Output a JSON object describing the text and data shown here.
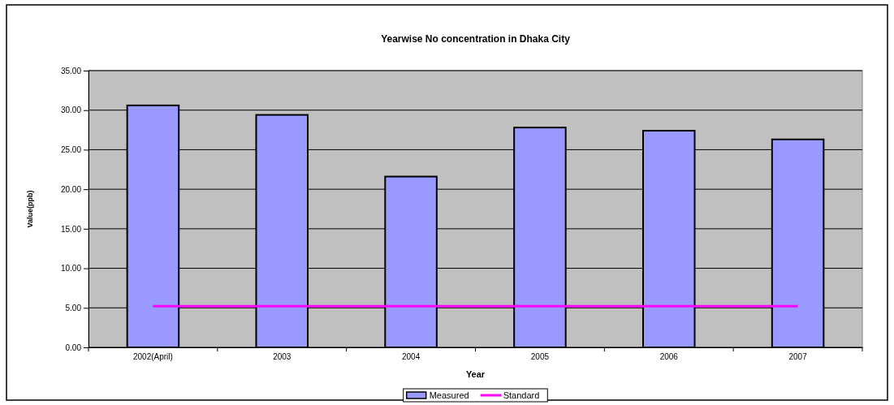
{
  "chart_data": {
    "type": "bar",
    "title": "Yearwise No concentration in Dhaka City",
    "xlabel": "Year",
    "ylabel": "Value(ppb)",
    "categories": [
      "2002(April)",
      "2003",
      "2004",
      "2005",
      "2006",
      "2007"
    ],
    "series": [
      {
        "name": "Measured",
        "color": "#9999ff",
        "values": [
          30.6,
          29.4,
          21.6,
          27.8,
          27.4,
          26.3
        ]
      },
      {
        "name": "Standard",
        "type": "line",
        "color": "#ff00ff",
        "values": [
          5.2,
          5.2,
          5.2,
          5.2,
          5.2,
          5.2
        ]
      }
    ],
    "ylim": [
      0,
      35
    ],
    "yticks": [
      {
        "value": 0,
        "label": "0.00"
      },
      {
        "value": 5,
        "label": "5.00"
      },
      {
        "value": 10,
        "label": "10.00"
      },
      {
        "value": 15,
        "label": "15.00"
      },
      {
        "value": 20,
        "label": "20.00"
      },
      {
        "value": 25,
        "label": "25.00"
      },
      {
        "value": 30,
        "label": "30.00"
      },
      {
        "value": 35,
        "label": "35.00"
      }
    ],
    "grid": "y",
    "legend": "bottom",
    "marker": "none",
    "line_style": "solid"
  }
}
